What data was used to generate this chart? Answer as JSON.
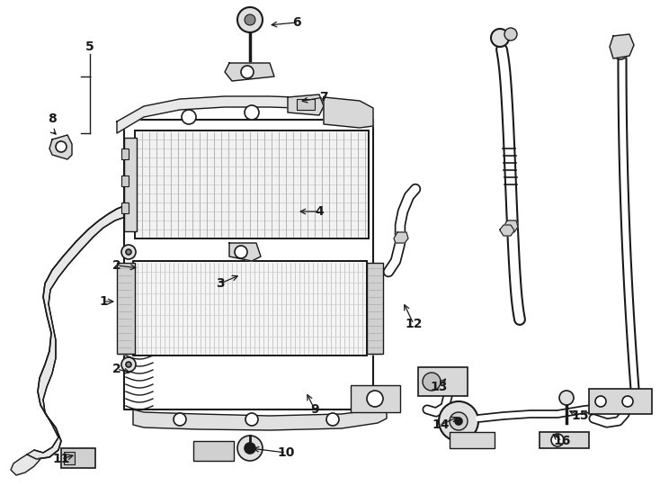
{
  "bg": "#ffffff",
  "lc": "#1a1a1a",
  "fig_w": 7.34,
  "fig_h": 5.4,
  "dpi": 100,
  "labels": [
    [
      "1",
      115,
      335,
      130,
      335
    ],
    [
      "2",
      130,
      295,
      155,
      298
    ],
    [
      "2",
      130,
      410,
      148,
      415
    ],
    [
      "3",
      245,
      315,
      268,
      305
    ],
    [
      "4",
      355,
      235,
      330,
      235
    ],
    [
      "5",
      100,
      55,
      100,
      90
    ],
    [
      "6",
      330,
      25,
      298,
      28
    ],
    [
      "7",
      360,
      108,
      332,
      113
    ],
    [
      "8",
      60,
      135,
      85,
      148
    ],
    [
      "9",
      350,
      455,
      340,
      435
    ],
    [
      "10",
      318,
      503,
      278,
      498
    ],
    [
      "11",
      68,
      510,
      85,
      505
    ],
    [
      "12",
      460,
      360,
      448,
      335
    ],
    [
      "13",
      488,
      430,
      498,
      418
    ],
    [
      "14",
      490,
      472,
      512,
      462
    ],
    [
      "15",
      645,
      462,
      630,
      455
    ],
    [
      "16",
      625,
      490,
      612,
      480
    ]
  ]
}
